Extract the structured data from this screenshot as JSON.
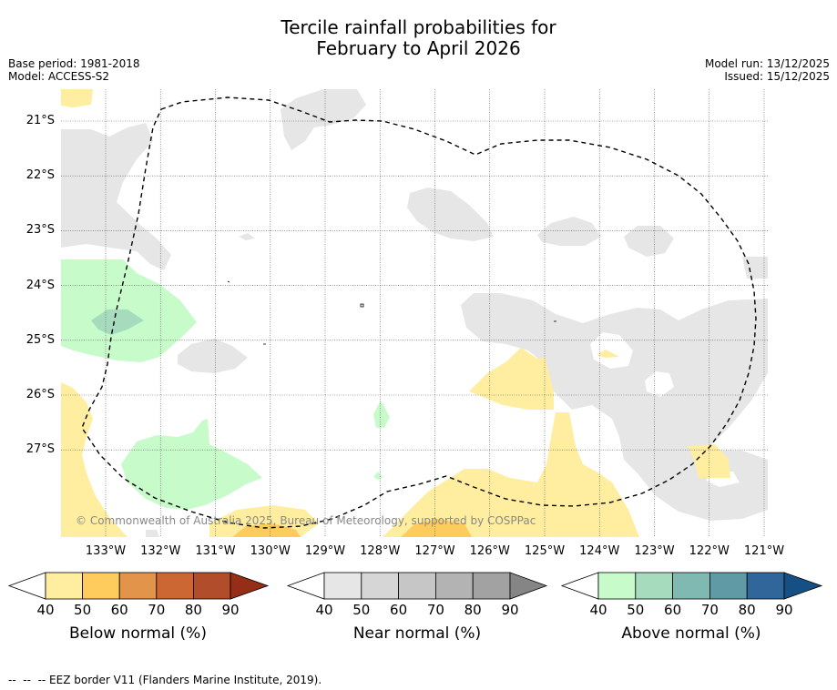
{
  "title": {
    "line1": "Tercile rainfall probabilities for",
    "line2": "February to April 2026"
  },
  "meta": {
    "base_period": "Base period: 1981-2018",
    "model": "Model: ACCESS-S2",
    "model_run": "Model run: 13/12/2025",
    "issued": "Issued: 15/12/2025"
  },
  "axes": {
    "longitudes": [
      "133°W",
      "132°W",
      "131°W",
      "130°W",
      "129°W",
      "128°W",
      "127°W",
      "126°W",
      "125°W",
      "124°W",
      "123°W",
      "122°W",
      "121°W"
    ],
    "latitudes": [
      "21°S",
      "22°S",
      "23°S",
      "24°S",
      "25°S",
      "26°S",
      "27°S"
    ]
  },
  "copyright": "© Commonwealth of Australia 2025, Bureau of Meteorology, supported by COSPPac",
  "colorbars": [
    {
      "label": "Below normal (%)",
      "ticks": [
        "40",
        "50",
        "60",
        "70",
        "80",
        "90"
      ],
      "colors": [
        "#ffeda0",
        "#fecc5c",
        "#e1944a",
        "#cc6633",
        "#b24d2b",
        "#962d17"
      ]
    },
    {
      "label": "Near normal (%)",
      "ticks": [
        "40",
        "50",
        "60",
        "70",
        "80",
        "90"
      ],
      "colors": [
        "#e6e6e6",
        "#d6d6d6",
        "#c6c6c6",
        "#b3b3b3",
        "#a2a2a2",
        "#858585"
      ]
    },
    {
      "label": "Above normal (%)",
      "ticks": [
        "40",
        "50",
        "60",
        "70",
        "80",
        "90"
      ],
      "colors": [
        "#c7fcca",
        "#a6dbbd",
        "#80b9b1",
        "#5f9aa5",
        "#31669a",
        "#164f84"
      ]
    }
  ],
  "footnote": "--  --  -- EEZ border V11 (Flanders Marine Institute, 2019)."
}
